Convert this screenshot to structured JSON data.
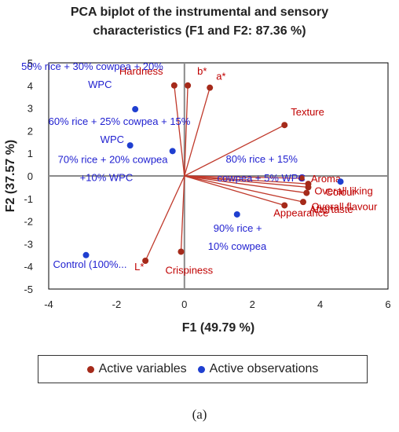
{
  "chart_data": {
    "type": "scatter",
    "title_line1": "PCA biplot of the instrumental and sensory",
    "title_line2": "characteristics (F1 and F2: 87.36 %)",
    "xlabel": "F1 (49.79 %)",
    "ylabel": "F2 (37.57 %)",
    "xlim": [
      -4,
      6
    ],
    "ylim": [
      -5,
      5
    ],
    "x_ticks": [
      "-4",
      "-2",
      "0",
      "2",
      "4",
      "6"
    ],
    "y_ticks": [
      "5",
      "4",
      "3",
      "2",
      "1",
      "0",
      "-1",
      "-2",
      "-3",
      "-4",
      "-5"
    ],
    "variables_color": "#c0392b",
    "observations_color": "#1f3fd0",
    "active_variables": [
      {
        "label": "Hardness",
        "x": -0.3,
        "y": 4.0
      },
      {
        "label": "b*",
        "x": 0.1,
        "y": 4.0
      },
      {
        "label": "a*",
        "x": 0.75,
        "y": 3.9
      },
      {
        "label": "Texture",
        "x": 2.95,
        "y": 2.25
      },
      {
        "label": "Aroma",
        "x": 3.45,
        "y": -0.1
      },
      {
        "label": "Colour",
        "x": 3.65,
        "y": -0.35
      },
      {
        "label": "Overall liking",
        "x": 3.6,
        "y": -0.75
      },
      {
        "label": "Aftertaste",
        "x": 3.5,
        "y": -1.15
      },
      {
        "label": "Overall flavour",
        "x": 3.65,
        "y": -0.5
      },
      {
        "label": "Appearance",
        "x": 2.95,
        "y": -1.3
      },
      {
        "label": "Crispiness",
        "x": -0.1,
        "y": -3.35
      },
      {
        "label": "L*",
        "x": -1.15,
        "y": -3.75
      }
    ],
    "active_observations": [
      {
        "label": "50% rice + 30% cowpea + 20% WPC",
        "x": -1.45,
        "y": 2.95
      },
      {
        "label": "60% rice + 25% cowpea + 15% WPC",
        "x": -1.6,
        "y": 1.35
      },
      {
        "label": "70% rice + 20% cowpea +10% WPC",
        "x": -0.35,
        "y": 1.1
      },
      {
        "label": "80% rice + 15% cowpea + 5% WPC",
        "x": 4.6,
        "y": -0.25
      },
      {
        "label": "90% rice + 10% cowpea",
        "x": 1.55,
        "y": -1.7
      },
      {
        "label": "Control (100%...",
        "x": -2.9,
        "y": -3.5
      }
    ],
    "legend": [
      "Active variables",
      "Active observations"
    ]
  },
  "legend": {
    "variables": "Active variables",
    "observations": "Active observations"
  },
  "caption": "(a)"
}
